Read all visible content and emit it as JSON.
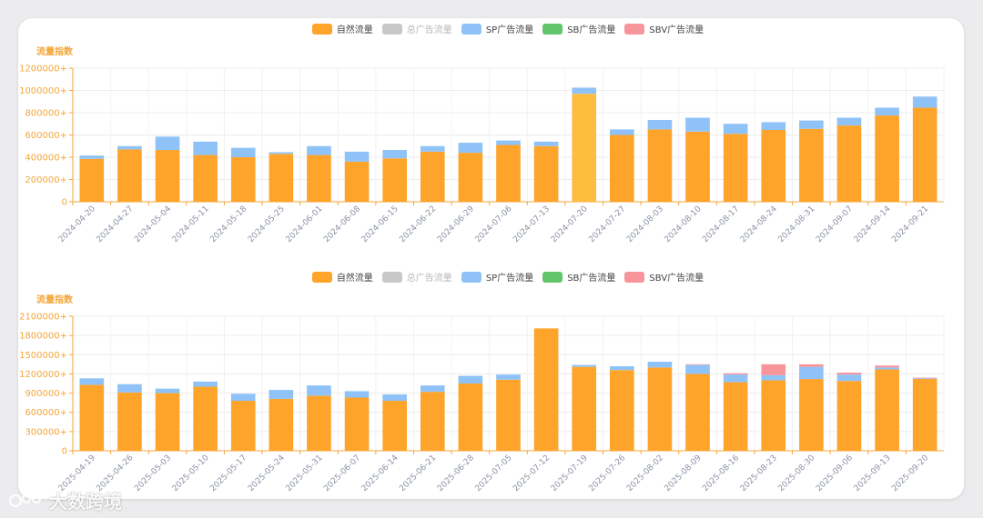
{
  "colors": {
    "natural": "#ffa42b",
    "natural_highlight": "#ffbd3f",
    "total_ad": "#c8c8c8",
    "sp": "#8fc3f8",
    "sb": "#63c56b",
    "sbv": "#f7959b",
    "axis_label": "#f4a638"
  },
  "legend": [
    {
      "label": "自然流量",
      "color": "#ffa42b",
      "muted": false
    },
    {
      "label": "总广告流量",
      "color": "#c8c8c8",
      "muted": true
    },
    {
      "label": "SP广告流量",
      "color": "#8fc3f8",
      "muted": false
    },
    {
      "label": "SB广告流量",
      "color": "#63c56b",
      "muted": false
    },
    {
      "label": "SBV广告流量",
      "color": "#f7959b",
      "muted": false
    }
  ],
  "watermark": "大数跨境",
  "chart_data": [
    {
      "type": "bar",
      "stacked": true,
      "ylabel": "流量指数",
      "ylim": [
        0,
        1200000
      ],
      "yticks": [
        "0",
        "200000+",
        "400000+",
        "600000+",
        "800000+",
        "1000000+",
        "1200000+"
      ],
      "categories": [
        "2024-04-20",
        "2024-04-27",
        "2024-05-04",
        "2024-05-11",
        "2024-05-18",
        "2024-05-25",
        "2024-06-01",
        "2024-06-08",
        "2024-06-15",
        "2024-06-22",
        "2024-06-29",
        "2024-07-06",
        "2024-07-13",
        "2024-07-20",
        "2024-07-27",
        "2024-08-03",
        "2024-08-10",
        "2024-08-17",
        "2024-08-24",
        "2024-08-31",
        "2024-09-07",
        "2024-09-14",
        "2024-09-21"
      ],
      "highlight_index": 13,
      "series": [
        {
          "name": "自然流量",
          "values": [
            385000,
            470000,
            465000,
            420000,
            400000,
            430000,
            420000,
            360000,
            390000,
            450000,
            440000,
            510000,
            500000,
            970000,
            600000,
            650000,
            630000,
            610000,
            645000,
            655000,
            685000,
            775000,
            845000
          ]
        },
        {
          "name": "SP广告流量",
          "values": [
            30000,
            30000,
            120000,
            120000,
            85000,
            15000,
            80000,
            90000,
            75000,
            50000,
            90000,
            40000,
            40000,
            55000,
            50000,
            85000,
            125000,
            90000,
            70000,
            75000,
            70000,
            70000,
            100000
          ]
        },
        {
          "name": "SB广告流量",
          "values": [
            0,
            0,
            0,
            0,
            0,
            0,
            0,
            0,
            0,
            0,
            0,
            0,
            0,
            0,
            0,
            0,
            0,
            0,
            0,
            0,
            0,
            0,
            0
          ]
        },
        {
          "name": "SBV广告流量",
          "values": [
            0,
            0,
            0,
            0,
            0,
            0,
            0,
            0,
            0,
            0,
            0,
            0,
            0,
            0,
            0,
            0,
            0,
            0,
            0,
            0,
            0,
            0,
            0
          ]
        }
      ]
    },
    {
      "type": "bar",
      "stacked": true,
      "ylabel": "流量指数",
      "ylim": [
        0,
        2100000
      ],
      "yticks": [
        "0",
        "300000+",
        "600000+",
        "900000+",
        "1200000+",
        "1500000+",
        "1800000+",
        "2100000+"
      ],
      "categories": [
        "2025-04-19",
        "2025-04-26",
        "2025-05-03",
        "2025-05-10",
        "2025-05-17",
        "2025-05-24",
        "2025-05-31",
        "2025-06-07",
        "2025-06-14",
        "2025-06-21",
        "2025-06-28",
        "2025-07-05",
        "2025-07-12",
        "2025-07-19",
        "2025-07-26",
        "2025-08-02",
        "2025-08-09",
        "2025-08-16",
        "2025-08-23",
        "2025-08-30",
        "2025-09-06",
        "2025-09-13",
        "2025-09-20"
      ],
      "highlight_index": -1,
      "series": [
        {
          "name": "自然流量",
          "values": [
            1030000,
            910000,
            900000,
            1000000,
            780000,
            810000,
            860000,
            830000,
            780000,
            920000,
            1050000,
            1110000,
            1910000,
            1310000,
            1260000,
            1300000,
            1200000,
            1070000,
            1100000,
            1120000,
            1090000,
            1270000,
            1120000
          ]
        },
        {
          "name": "SP广告流量",
          "values": [
            100000,
            130000,
            70000,
            80000,
            110000,
            140000,
            160000,
            100000,
            100000,
            100000,
            120000,
            80000,
            0,
            30000,
            60000,
            90000,
            140000,
            120000,
            80000,
            190000,
            100000,
            30000,
            10000
          ]
        },
        {
          "name": "SB广告流量",
          "values": [
            0,
            0,
            0,
            0,
            0,
            0,
            0,
            0,
            0,
            0,
            0,
            0,
            0,
            0,
            0,
            0,
            0,
            0,
            0,
            0,
            0,
            0,
            0
          ]
        },
        {
          "name": "SBV广告流量",
          "values": [
            0,
            0,
            0,
            0,
            0,
            0,
            0,
            0,
            0,
            0,
            0,
            0,
            0,
            0,
            0,
            0,
            10000,
            20000,
            170000,
            40000,
            30000,
            30000,
            10000
          ]
        }
      ]
    }
  ]
}
